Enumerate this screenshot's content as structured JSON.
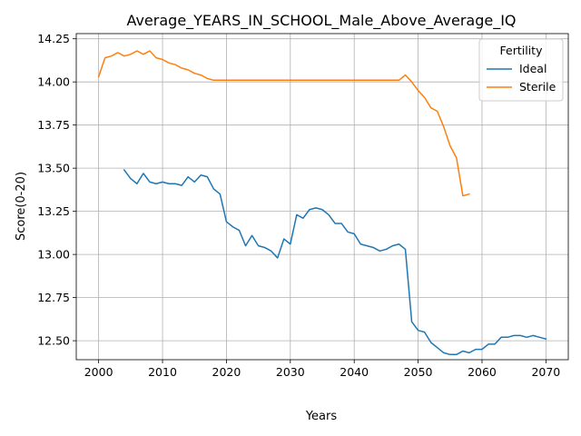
{
  "chart_data": {
    "type": "line",
    "title": "Average_YEARS_IN_SCHOOL_Male_Above_Average_IQ",
    "xlabel": "Years",
    "ylabel": "Score(0-20)",
    "xlim": [
      1996.5,
      2073.5
    ],
    "ylim": [
      12.39,
      14.28
    ],
    "xticks": [
      2000,
      2010,
      2020,
      2030,
      2040,
      2050,
      2060,
      2070
    ],
    "yticks": [
      12.5,
      12.75,
      13.0,
      13.25,
      13.5,
      13.75,
      14.0,
      14.25
    ],
    "grid": true,
    "legend": {
      "title": "Fertility",
      "placement": "top-right"
    },
    "series": [
      {
        "name": "Ideal",
        "color": "#1f77b4",
        "x": [
          2004,
          2005,
          2006,
          2007,
          2008,
          2009,
          2010,
          2011,
          2012,
          2013,
          2014,
          2015,
          2016,
          2017,
          2018,
          2019,
          2020,
          2021,
          2022,
          2023,
          2024,
          2025,
          2026,
          2027,
          2028,
          2029,
          2030,
          2031,
          2032,
          2033,
          2034,
          2035,
          2036,
          2037,
          2038,
          2039,
          2040,
          2041,
          2042,
          2043,
          2044,
          2045,
          2046,
          2047,
          2048,
          2049,
          2050,
          2051,
          2052,
          2053,
          2054,
          2055,
          2056,
          2057,
          2058,
          2059,
          2060,
          2061,
          2062,
          2063,
          2064,
          2065,
          2066,
          2067,
          2068,
          2069,
          2070
        ],
        "y": [
          13.49,
          13.44,
          13.41,
          13.47,
          13.42,
          13.41,
          13.42,
          13.41,
          13.41,
          13.4,
          13.45,
          13.42,
          13.46,
          13.45,
          13.38,
          13.35,
          13.19,
          13.16,
          13.14,
          13.05,
          13.11,
          13.05,
          13.04,
          13.02,
          12.98,
          13.09,
          13.06,
          13.23,
          13.21,
          13.26,
          13.27,
          13.26,
          13.23,
          13.18,
          13.18,
          13.13,
          13.12,
          13.06,
          13.05,
          13.04,
          13.02,
          13.03,
          13.05,
          13.06,
          13.03,
          12.61,
          12.56,
          12.55,
          12.49,
          12.46,
          12.43,
          12.42,
          12.42,
          12.44,
          12.43,
          12.45,
          12.45,
          12.48,
          12.48,
          12.52,
          12.52,
          12.53,
          12.53,
          12.52,
          12.53,
          12.52,
          12.51
        ]
      },
      {
        "name": "Sterile",
        "color": "#ff7f0e",
        "x": [
          2000,
          2001,
          2002,
          2003,
          2004,
          2005,
          2006,
          2007,
          2008,
          2009,
          2010,
          2011,
          2012,
          2013,
          2014,
          2015,
          2016,
          2017,
          2018,
          2019,
          2020,
          2025,
          2030,
          2035,
          2040,
          2045,
          2047,
          2048,
          2049,
          2050,
          2051,
          2052,
          2053,
          2054,
          2055,
          2056,
          2057,
          2058
        ],
        "y": [
          14.03,
          14.14,
          14.15,
          14.17,
          14.15,
          14.16,
          14.18,
          14.16,
          14.18,
          14.14,
          14.13,
          14.11,
          14.1,
          14.08,
          14.07,
          14.05,
          14.04,
          14.02,
          14.01,
          14.01,
          14.01,
          14.01,
          14.01,
          14.01,
          14.01,
          14.01,
          14.01,
          14.04,
          14.0,
          13.95,
          13.91,
          13.85,
          13.83,
          13.74,
          13.63,
          13.56,
          13.34,
          13.35
        ]
      }
    ]
  }
}
